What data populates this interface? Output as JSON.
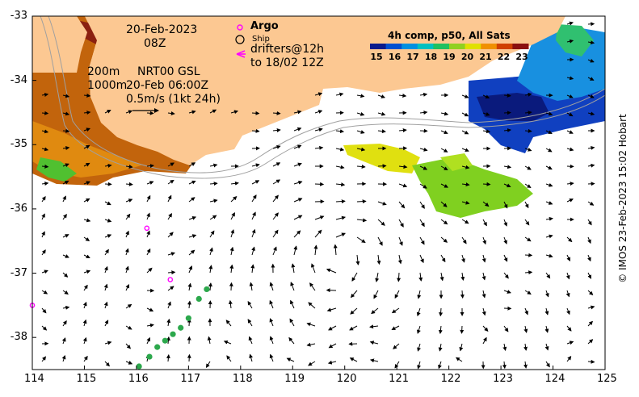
{
  "map": {
    "date_label": "20-Feb-2023",
    "hour_label": "08Z",
    "depth_200": "200m",
    "depth_1000": "1000m",
    "product_label": "NRT00 GSL",
    "product_time": "20-Feb 06:00Z",
    "vector_scale_label": "0.5m/s (1kt 24h)",
    "legend": {
      "argo_label": "Argo",
      "ship_label": "Ship",
      "drifters_label_1": "drifters@12h",
      "drifters_label_2": "to 18/02 12Z",
      "argo_color": "#ff00ff",
      "drifter_color": "#ff00ff"
    },
    "colorbar": {
      "title": "4h comp, p50, All Sats",
      "ticks": [
        "15",
        "16",
        "17",
        "18",
        "19",
        "20",
        "21",
        "22",
        "23"
      ],
      "colors": [
        "#0a1a8c",
        "#0050d0",
        "#0090e0",
        "#00c0c0",
        "#20c060",
        "#90d020",
        "#e0e000",
        "#f09000",
        "#d04000",
        "#8b1010"
      ]
    },
    "credit": "© IMOS 23-Feb-2023 15:02 Hobart",
    "land_color": "#fcc892",
    "x_axis": {
      "ticks": [
        "114",
        "115",
        "116",
        "117",
        "118",
        "119",
        "120",
        "121",
        "122",
        "123",
        "124",
        "125"
      ],
      "range": [
        114,
        125
      ]
    },
    "y_axis": {
      "ticks": [
        "-33",
        "-34",
        "-35",
        "-36",
        "-37",
        "-38"
      ],
      "range": [
        -38.5,
        -33
      ]
    },
    "argo_floats": [
      {
        "lon": 116.2,
        "lat": -36.3
      },
      {
        "lon": 116.65,
        "lat": -37.1
      },
      {
        "lon": 114.0,
        "lat": -37.5
      }
    ],
    "ship_track": [
      {
        "lon": 117.35,
        "lat": -37.25
      },
      {
        "lon": 117.2,
        "lat": -37.4
      },
      {
        "lon": 117.0,
        "lat": -37.7
      },
      {
        "lon": 116.85,
        "lat": -37.85
      },
      {
        "lon": 116.7,
        "lat": -37.95
      },
      {
        "lon": 116.55,
        "lat": -38.05
      },
      {
        "lon": 116.4,
        "lat": -38.15
      },
      {
        "lon": 116.25,
        "lat": -38.3
      },
      {
        "lon": 116.05,
        "lat": -38.45
      }
    ]
  }
}
